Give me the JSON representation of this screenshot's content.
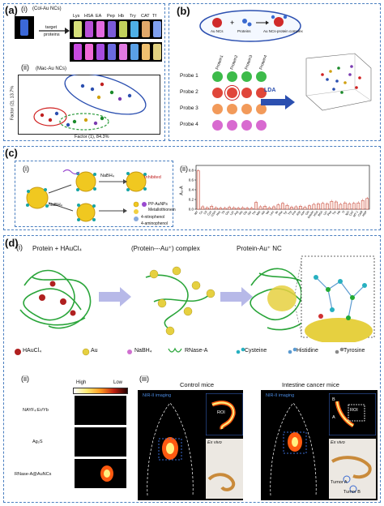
{
  "panel_a": {
    "label": "(a)",
    "sub_i": "(i)",
    "sub_ii": "(ii)",
    "nc_label": "(Col-Au NCs)",
    "arrow_text_top": "target",
    "arrow_text_bottom": "proteins",
    "protein_labels": [
      "Lys",
      "HSA",
      "EA",
      "Pep",
      "Hb",
      "Try",
      "CAT",
      "Tf"
    ],
    "mac_label": "(Mac-Au NCs)",
    "xaxis": "Factor (1), 84.3%",
    "yaxis": "Factor (2), 13.7%",
    "vial_colors_top": [
      "#d6e07a",
      "#b94fd8",
      "#e36ae0",
      "#7b5bd8",
      "#c2d25c",
      "#4fb0e6",
      "#e2a86a",
      "#7fa0f0"
    ],
    "vial_colors_bottom": [
      "#c84ae0",
      "#f06ad8",
      "#a64ce0",
      "#6a6ae0",
      "#e07ae0",
      "#5aa0e6",
      "#f0c070",
      "#e0d080"
    ]
  },
  "panel_b": {
    "label": "(b)",
    "bubble_text_1": "Au NCs",
    "bubble_text_2": "Proteins",
    "bubble_text_3": "Au NCs-protein complex",
    "probe_labels": [
      "Probe 1",
      "Probe 2",
      "Probe 3",
      "Probe 4"
    ],
    "protein_cols": [
      "Protein1",
      "Protein2",
      "Protein3",
      "Protein4"
    ],
    "lda_label": "LDA",
    "probe_colors": [
      "#3dbb4a",
      "#e0463a",
      "#f29a5a",
      "#d86ad0"
    ]
  },
  "panel_c": {
    "label": "(c)",
    "sub_i": "(i)",
    "sub_ii": "(ii)",
    "nabh4_1": "NaBH₄",
    "nabh4_2": "NaBH₄",
    "inhibited": "Inhibited",
    "legend": [
      "PP-AuNPs",
      "Metallothionein",
      "4-nitrophenol",
      "4-aminophenol"
    ],
    "ylabel": "A₀-A",
    "categories": [
      "MT",
      "Cu",
      "Cd",
      "Cys",
      "GSH",
      "Hcy",
      "Tb",
      "Glu",
      "Lys",
      "Arg",
      "His",
      "Gly",
      "Ser",
      "Thr",
      "Met",
      "Ala",
      "Val",
      "Leu",
      "Ile",
      "Phe",
      "Tyr",
      "Trp",
      "Pro",
      "Asp",
      "Asn",
      "Gln",
      "Insulin",
      "HSA",
      "BSA",
      "Lyz",
      "Pep",
      "Try",
      "Hb",
      "Tf",
      "IgG",
      "CAT",
      "MT-1",
      "CaM",
      "HRP"
    ],
    "values": [
      0.79,
      0.05,
      0.03,
      0.06,
      0.03,
      0.02,
      0.02,
      0.04,
      0.03,
      0.02,
      0.03,
      0.02,
      0.02,
      0.14,
      0.05,
      0.06,
      0.03,
      0.05,
      0.09,
      0.12,
      0.08,
      0.04,
      0.05,
      0.06,
      0.04,
      0.07,
      0.1,
      0.11,
      0.12,
      0.11,
      0.16,
      0.15,
      0.1,
      0.13,
      0.11,
      0.12,
      0.13,
      0.18,
      0.22
    ]
  },
  "panel_d": {
    "label": "(d)",
    "sub_i": "(i)",
    "sub_ii": "(ii)",
    "sub_iii": "(iii)",
    "step1": "Protein + HAuCl₄",
    "step2": "(Protein---Au⁺) complex",
    "step3": "Protein-Au⁺ NC",
    "legend": [
      "HAuCl₄",
      "Au",
      "NaBH₄",
      "RNase-A",
      "Cysteine",
      "Histidine",
      "Tyrosine"
    ],
    "colorbar_high": "High",
    "colorbar_low": "Low",
    "materials": [
      "NAYF₄:Er/Yb",
      "Ag₂S",
      "RNase-A@AuNCs"
    ],
    "control_title": "Control mice",
    "cancer_title": "Intestine cancer mice",
    "nir_label": "NIR-II imaging",
    "exvivo": "Ex vivo",
    "roi": "ROI",
    "roi2": "ROI",
    "marker_a": "A",
    "marker_b": "B",
    "tumor_a": "Tumor A",
    "tumor_b": "Tumor B"
  }
}
